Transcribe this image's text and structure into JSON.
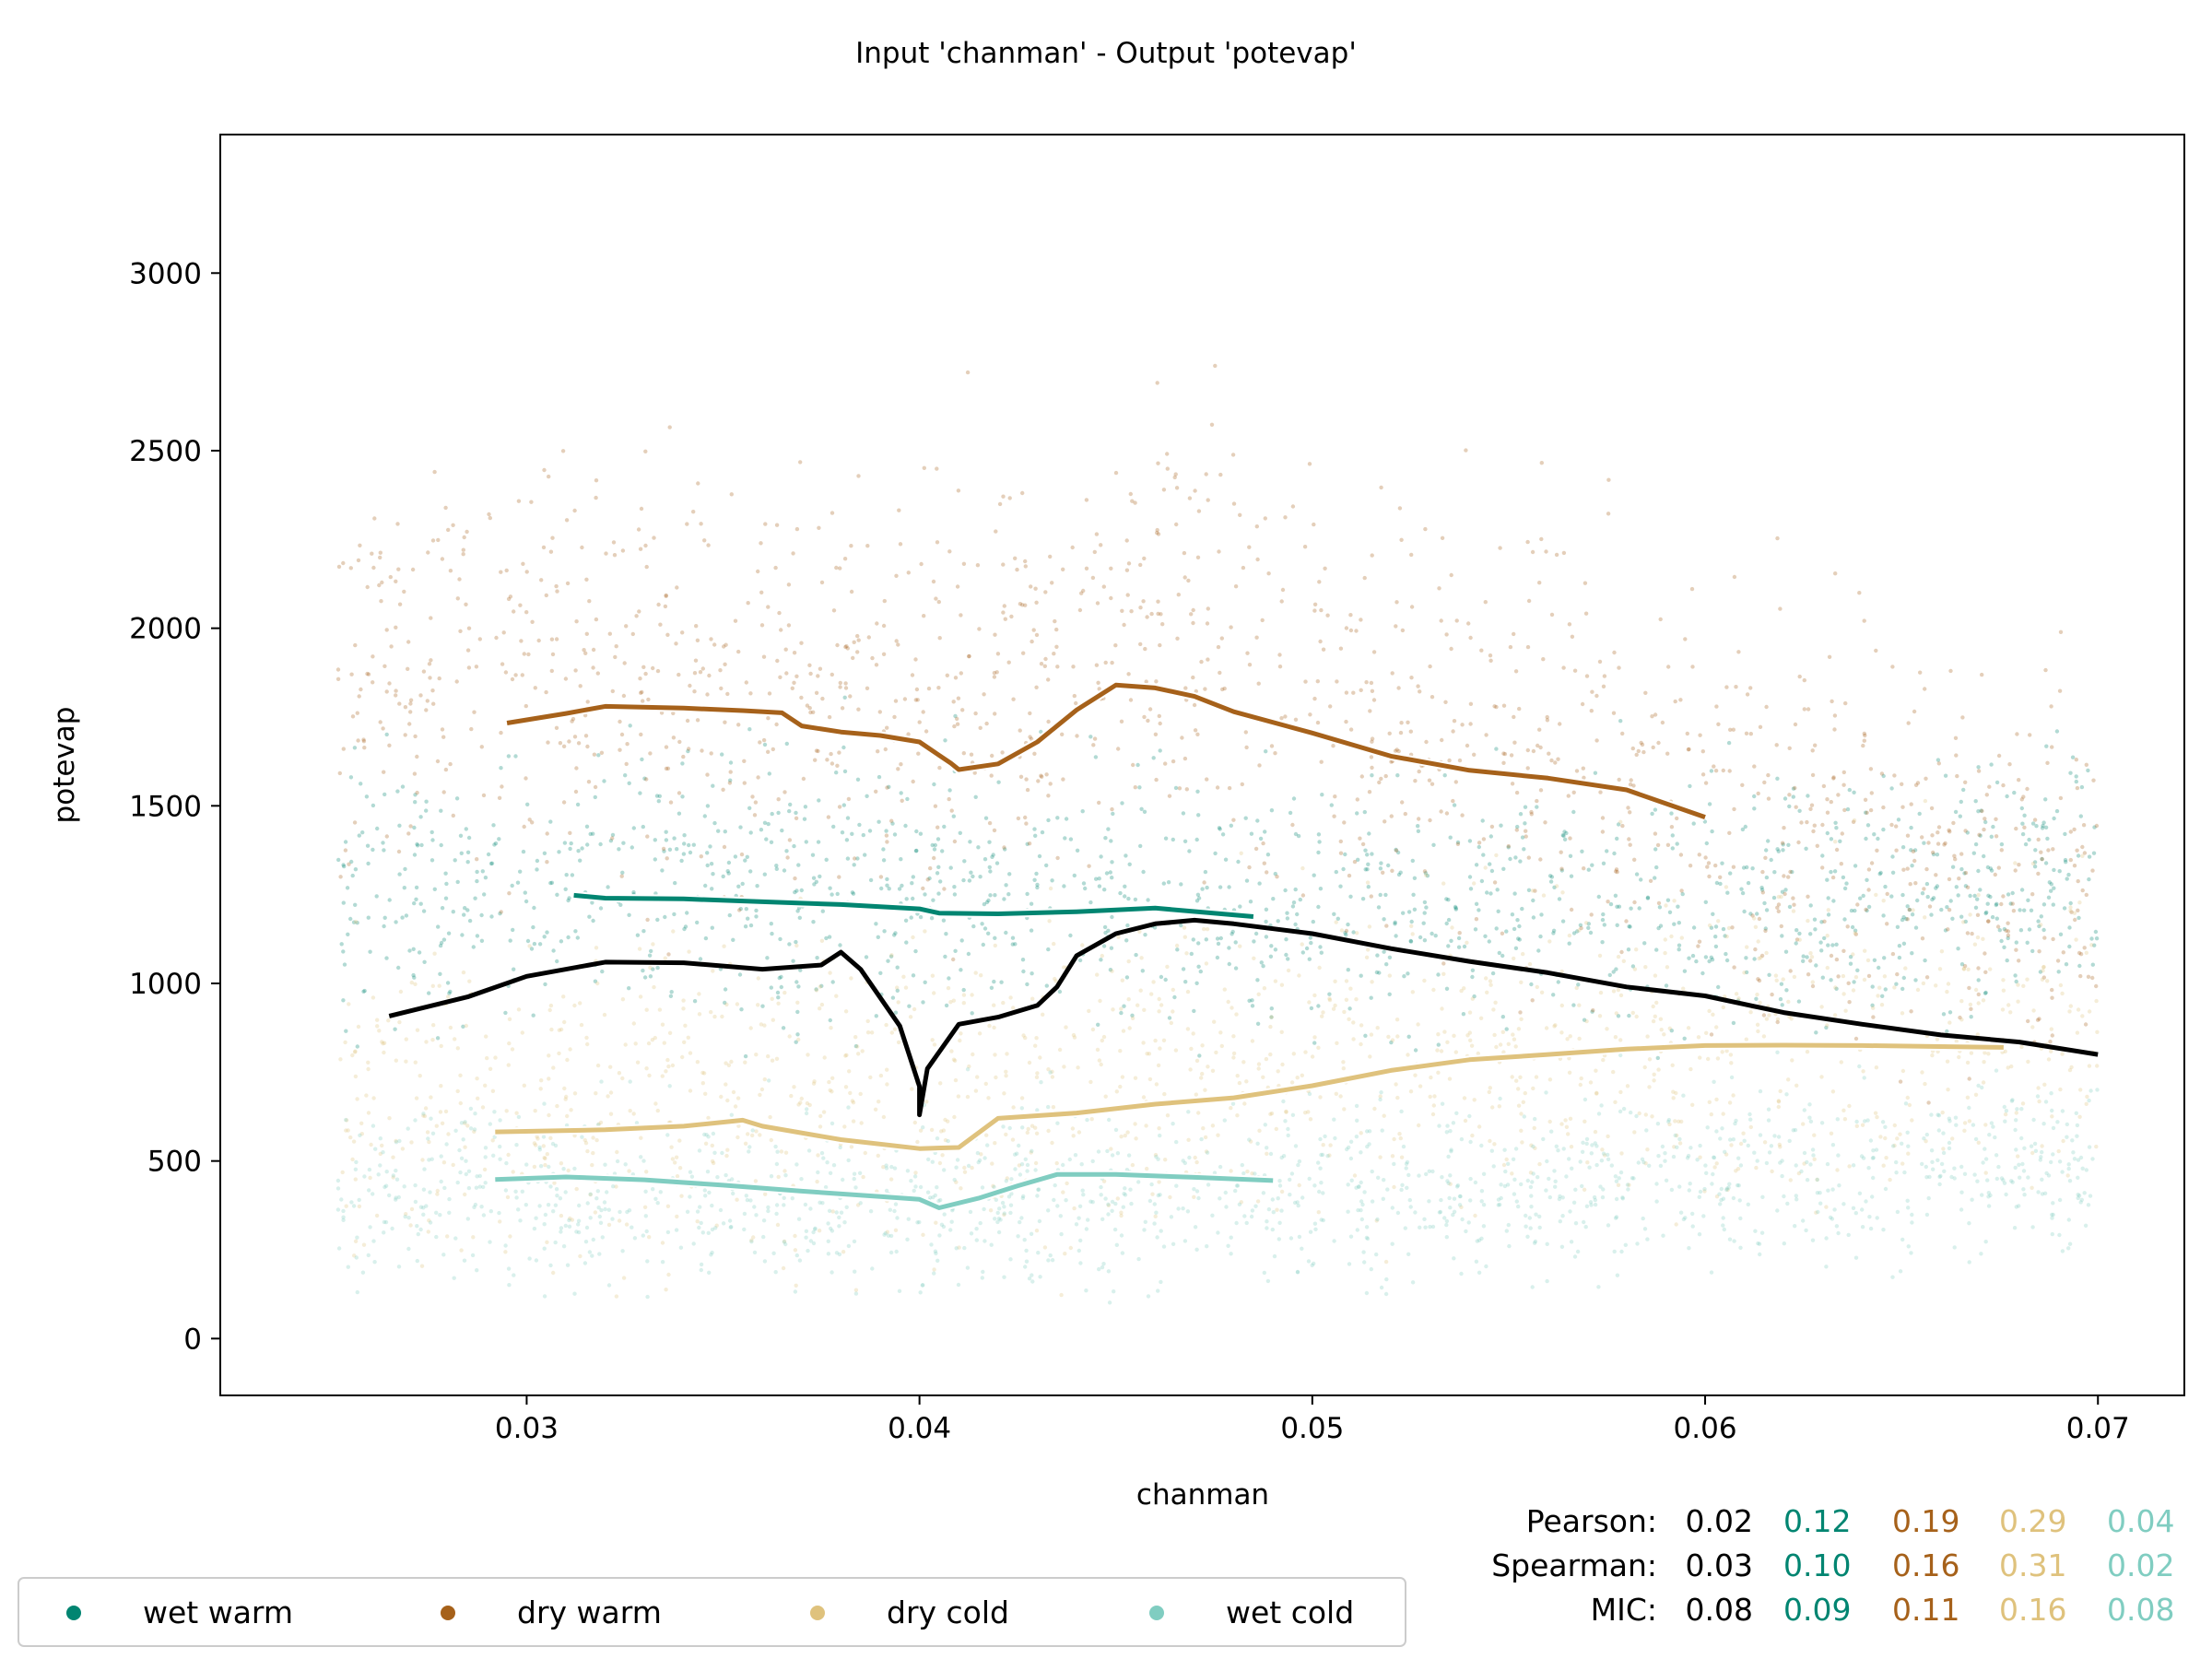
{
  "chart_data": {
    "type": "scatter",
    "title": "Input 'chanman' - Output 'potevap'",
    "xlabel": "chanman",
    "ylabel": "potevap",
    "xlim": [
      0.0222,
      0.0722
    ],
    "ylim": [
      -160,
      3390
    ],
    "xticks": [
      0.03,
      0.04,
      0.05,
      0.06,
      0.07
    ],
    "xtick_labels": [
      "0.03",
      "0.04",
      "0.05",
      "0.06",
      "0.07"
    ],
    "yticks": [
      0,
      500,
      1000,
      1500,
      2000,
      2500,
      3000
    ],
    "ytick_labels": [
      "0",
      "500",
      "1000",
      "1500",
      "2000",
      "2500",
      "3000"
    ],
    "grid": false,
    "legend_position": "bottom-left, below plot",
    "series": [
      {
        "name": "wet warm",
        "color": "#018571",
        "scatter_center": [
          [
            0.025,
            1250
          ],
          [
            0.04,
            1280
          ],
          [
            0.05,
            1200
          ],
          [
            0.07,
            1300
          ]
        ],
        "scatter_spread": 260,
        "trend": [
          [
            0.0312,
            1248
          ],
          [
            0.032,
            1240
          ],
          [
            0.034,
            1238
          ],
          [
            0.036,
            1230
          ],
          [
            0.038,
            1222
          ],
          [
            0.04,
            1210
          ],
          [
            0.0405,
            1198
          ],
          [
            0.042,
            1196
          ],
          [
            0.044,
            1202
          ],
          [
            0.046,
            1212
          ],
          [
            0.0485,
            1188
          ]
        ]
      },
      {
        "name": "dry warm",
        "color": "#a6611a",
        "scatter_center": [
          [
            0.025,
            1900
          ],
          [
            0.04,
            1800
          ],
          [
            0.045,
            2000
          ],
          [
            0.06,
            1500
          ],
          [
            0.07,
            1300
          ]
        ],
        "scatter_spread": 420,
        "trend": [
          [
            0.0295,
            1733
          ],
          [
            0.031,
            1760
          ],
          [
            0.032,
            1780
          ],
          [
            0.034,
            1775
          ],
          [
            0.0355,
            1768
          ],
          [
            0.0365,
            1762
          ],
          [
            0.037,
            1725
          ],
          [
            0.038,
            1708
          ],
          [
            0.039,
            1698
          ],
          [
            0.04,
            1680
          ],
          [
            0.0408,
            1620
          ],
          [
            0.041,
            1602
          ],
          [
            0.042,
            1618
          ],
          [
            0.043,
            1680
          ],
          [
            0.044,
            1770
          ],
          [
            0.045,
            1840
          ],
          [
            0.046,
            1832
          ],
          [
            0.047,
            1808
          ],
          [
            0.048,
            1765
          ],
          [
            0.05,
            1705
          ],
          [
            0.052,
            1640
          ],
          [
            0.054,
            1600
          ],
          [
            0.056,
            1578
          ],
          [
            0.058,
            1545
          ],
          [
            0.06,
            1468
          ]
        ]
      },
      {
        "name": "dry cold",
        "color": "#dfc27d",
        "scatter_center": [
          [
            0.025,
            650
          ],
          [
            0.04,
            700
          ],
          [
            0.05,
            800
          ],
          [
            0.06,
            850
          ],
          [
            0.07,
            850
          ]
        ],
        "scatter_spread": 320,
        "trend": [
          [
            0.0292,
            582
          ],
          [
            0.032,
            588
          ],
          [
            0.034,
            598
          ],
          [
            0.0355,
            615
          ],
          [
            0.036,
            598
          ],
          [
            0.038,
            560
          ],
          [
            0.04,
            535
          ],
          [
            0.041,
            538
          ],
          [
            0.042,
            620
          ],
          [
            0.044,
            635
          ],
          [
            0.046,
            660
          ],
          [
            0.048,
            678
          ],
          [
            0.05,
            712
          ],
          [
            0.052,
            755
          ],
          [
            0.054,
            785
          ],
          [
            0.056,
            800
          ],
          [
            0.058,
            815
          ],
          [
            0.06,
            825
          ],
          [
            0.062,
            826
          ],
          [
            0.064,
            825
          ],
          [
            0.0676,
            820
          ]
        ]
      },
      {
        "name": "wet cold",
        "color": "#80cdc1",
        "scatter_center": [
          [
            0.025,
            430
          ],
          [
            0.04,
            380
          ],
          [
            0.05,
            420
          ],
          [
            0.07,
            500
          ]
        ],
        "scatter_spread": 180,
        "trend": [
          [
            0.0292,
            448
          ],
          [
            0.031,
            455
          ],
          [
            0.033,
            447
          ],
          [
            0.035,
            432
          ],
          [
            0.037,
            415
          ],
          [
            0.039,
            400
          ],
          [
            0.04,
            392
          ],
          [
            0.0405,
            368
          ],
          [
            0.0415,
            395
          ],
          [
            0.0425,
            430
          ],
          [
            0.0435,
            462
          ],
          [
            0.045,
            462
          ],
          [
            0.047,
            454
          ],
          [
            0.049,
            445
          ]
        ]
      },
      {
        "name": "",
        "color": "#000000",
        "trend": [
          [
            0.0265,
            908
          ],
          [
            0.0285,
            962
          ],
          [
            0.03,
            1020
          ],
          [
            0.032,
            1060
          ],
          [
            0.034,
            1058
          ],
          [
            0.036,
            1040
          ],
          [
            0.0375,
            1052
          ],
          [
            0.038,
            1088
          ],
          [
            0.0385,
            1040
          ],
          [
            0.0395,
            880
          ],
          [
            0.04,
            710
          ],
          [
            0.04,
            630
          ],
          [
            0.0402,
            760
          ],
          [
            0.041,
            885
          ],
          [
            0.042,
            905
          ],
          [
            0.043,
            938
          ],
          [
            0.0435,
            990
          ],
          [
            0.044,
            1078
          ],
          [
            0.045,
            1140
          ],
          [
            0.046,
            1168
          ],
          [
            0.047,
            1178
          ],
          [
            0.048,
            1168
          ],
          [
            0.05,
            1140
          ],
          [
            0.052,
            1098
          ],
          [
            0.054,
            1062
          ],
          [
            0.056,
            1030
          ],
          [
            0.058,
            990
          ],
          [
            0.06,
            965
          ],
          [
            0.062,
            918
          ],
          [
            0.064,
            885
          ],
          [
            0.066,
            855
          ],
          [
            0.068,
            835
          ],
          [
            0.07,
            800
          ]
        ]
      }
    ],
    "stats": {
      "rows": [
        {
          "label": "Pearson:",
          "values": [
            "0.02",
            "0.12",
            "0.19",
            "0.29",
            "0.04"
          ]
        },
        {
          "label": "Spearman:",
          "values": [
            "0.03",
            "0.10",
            "0.16",
            "0.31",
            "0.02"
          ]
        },
        {
          "label": "MIC:",
          "values": [
            "0.08",
            "0.09",
            "0.11",
            "0.16",
            "0.08"
          ]
        }
      ],
      "colors": [
        "#000000",
        "#018571",
        "#a6611a",
        "#dfc27d",
        "#80cdc1"
      ]
    }
  }
}
